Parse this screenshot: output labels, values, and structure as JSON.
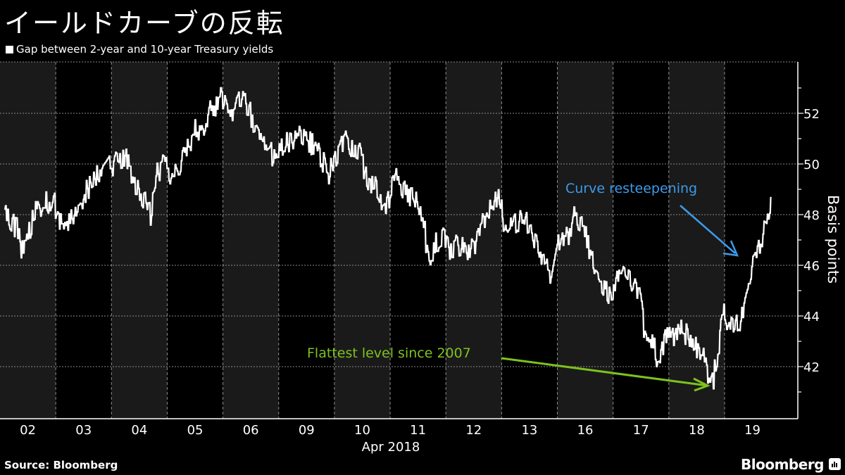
{
  "header": {
    "title": "イールドカーブの反転",
    "legend_label": "Gap between 2-year and 10-year Treasury yields"
  },
  "footer": {
    "source": "Source:  Bloomberg",
    "brand": "Bloomberg"
  },
  "colors": {
    "background": "#000000",
    "band": "#1a1a1a",
    "line": "#ffffff",
    "grid": "#8a8a8a",
    "annotation_blue": "#3d9be9",
    "annotation_green": "#7dc21e"
  },
  "chart_data": {
    "type": "line",
    "title": "イールドカーブの反転",
    "series": [
      {
        "name": "Gap between 2-year and 10-year Treasury yields",
        "points": [
          [
            0.08,
            48.2
          ],
          [
            0.18,
            47.6
          ],
          [
            0.32,
            47.5
          ],
          [
            0.36,
            46.6
          ],
          [
            0.5,
            47.2
          ],
          [
            0.62,
            48.1
          ],
          [
            0.75,
            48.4
          ],
          [
            0.96,
            48.6
          ],
          [
            1.05,
            47.8
          ],
          [
            1.2,
            47.4
          ],
          [
            1.35,
            48.2
          ],
          [
            1.55,
            48.9
          ],
          [
            1.7,
            49.5
          ],
          [
            1.85,
            49.8
          ],
          [
            1.96,
            50.1
          ],
          [
            2.02,
            49.9
          ],
          [
            2.15,
            50.3
          ],
          [
            2.3,
            50.1
          ],
          [
            2.45,
            49.0
          ],
          [
            2.62,
            48.4
          ],
          [
            2.7,
            48.0
          ],
          [
            2.82,
            49.6
          ],
          [
            2.98,
            50.1
          ],
          [
            3.05,
            49.6
          ],
          [
            3.2,
            49.9
          ],
          [
            3.4,
            50.8
          ],
          [
            3.5,
            51.5
          ],
          [
            3.6,
            51.2
          ],
          [
            3.75,
            52.0
          ],
          [
            3.9,
            52.4
          ],
          [
            3.98,
            52.7
          ],
          [
            4.05,
            52.2
          ],
          [
            4.15,
            51.8
          ],
          [
            4.3,
            52.6
          ],
          [
            4.45,
            52.3
          ],
          [
            4.6,
            51.2
          ],
          [
            4.75,
            50.8
          ],
          [
            4.9,
            50.3
          ],
          [
            4.97,
            50.4
          ],
          [
            5.05,
            50.6
          ],
          [
            5.2,
            50.9
          ],
          [
            5.35,
            51.2
          ],
          [
            5.45,
            50.9
          ],
          [
            5.6,
            50.8
          ],
          [
            5.75,
            50.3
          ],
          [
            5.88,
            49.6
          ],
          [
            5.97,
            49.9
          ],
          [
            6.05,
            50.4
          ],
          [
            6.2,
            50.9
          ],
          [
            6.35,
            50.6
          ],
          [
            6.45,
            50.4
          ],
          [
            6.6,
            49.3
          ],
          [
            6.75,
            49.0
          ],
          [
            6.88,
            48.2
          ],
          [
            6.98,
            48.6
          ],
          [
            7.05,
            49.6
          ],
          [
            7.2,
            49.0
          ],
          [
            7.35,
            48.7
          ],
          [
            7.5,
            48.4
          ],
          [
            7.6,
            47.7
          ],
          [
            7.68,
            46.1
          ],
          [
            7.8,
            46.8
          ],
          [
            7.95,
            47.1
          ],
          [
            8.05,
            46.6
          ],
          [
            8.2,
            46.8
          ],
          [
            8.35,
            46.6
          ],
          [
            8.5,
            46.7
          ],
          [
            8.6,
            47.4
          ],
          [
            8.75,
            47.9
          ],
          [
            8.85,
            48.5
          ],
          [
            8.96,
            48.6
          ],
          [
            9.05,
            47.5
          ],
          [
            9.2,
            47.7
          ],
          [
            9.35,
            47.8
          ],
          [
            9.5,
            47.6
          ],
          [
            9.6,
            46.9
          ],
          [
            9.75,
            46.2
          ],
          [
            9.87,
            45.6
          ],
          [
            9.98,
            46.6
          ],
          [
            10.05,
            47.1
          ],
          [
            10.2,
            47.2
          ],
          [
            10.3,
            47.9
          ],
          [
            10.45,
            47.6
          ],
          [
            10.55,
            46.8
          ],
          [
            10.68,
            46.0
          ],
          [
            10.82,
            45.2
          ],
          [
            10.95,
            44.8
          ],
          [
            11.05,
            45.5
          ],
          [
            11.2,
            45.6
          ],
          [
            11.35,
            45.3
          ],
          [
            11.45,
            45.0
          ],
          [
            11.55,
            43.6
          ],
          [
            11.7,
            43.0
          ],
          [
            11.82,
            42.1
          ],
          [
            11.97,
            43.3
          ],
          [
            12.05,
            43.1
          ],
          [
            12.2,
            43.4
          ],
          [
            12.35,
            43.2
          ],
          [
            12.5,
            42.8
          ],
          [
            12.6,
            42.6
          ],
          [
            12.7,
            41.6
          ],
          [
            12.78,
            41.3
          ],
          [
            12.88,
            42.6
          ],
          [
            12.97,
            44.2
          ],
          [
            13.04,
            43.9
          ],
          [
            13.12,
            43.6
          ],
          [
            13.25,
            43.6
          ],
          [
            13.35,
            44.2
          ],
          [
            13.45,
            45.6
          ],
          [
            13.55,
            46.3
          ],
          [
            13.65,
            46.9
          ],
          [
            13.75,
            47.6
          ],
          [
            13.83,
            48.7
          ]
        ]
      }
    ],
    "categories": [
      "02",
      "03",
      "04",
      "05",
      "06",
      "09",
      "10",
      "11",
      "12",
      "13",
      "16",
      "17",
      "18",
      "19"
    ],
    "xlabel": "Apr 2018",
    "ylabel": "Basis points",
    "yticks": [
      42,
      44,
      46,
      48,
      50,
      52
    ],
    "ylim": [
      40.2,
      53.8
    ],
    "grid": true,
    "legend_position": "top-left",
    "annotations": [
      {
        "text": "Curve resteepening",
        "color": "#3d9be9",
        "target": [
          13.2,
          46.4
        ]
      },
      {
        "text": "Flattest level since 2007",
        "color": "#7dc21e",
        "target": [
          12.72,
          41.5
        ]
      }
    ]
  }
}
